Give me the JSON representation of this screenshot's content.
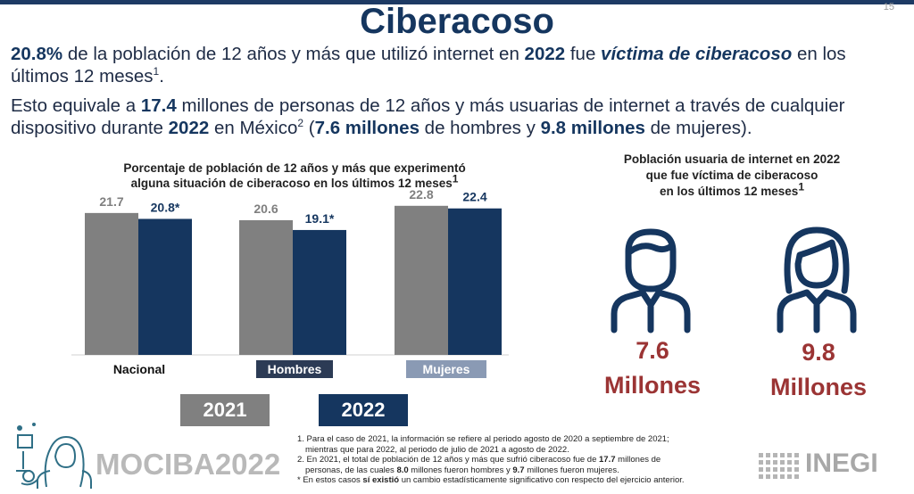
{
  "header": {
    "title": "Ciberacoso",
    "page_number": "15"
  },
  "paragraph1": {
    "s1": "20.8%",
    "s2": " de la población de 12 años y más que utilizó internet en ",
    "s3": "2022",
    "s4": " fue ",
    "s5": "víctima de ciberacoso",
    "s6": " en los últimos 12 meses",
    "s7": "1",
    "s8": "."
  },
  "paragraph2": {
    "s1": "Esto equivale a ",
    "s2": "17.4",
    "s3": " millones de personas de 12 años y más usuarias de internet a través de cualquier dispositivo durante ",
    "s4": "2022",
    "s5": " en México",
    "s6": "2",
    "s7": " (",
    "s8": "7.6 millones",
    "s9": " de hombres y ",
    "s10": "9.8 millones",
    "s11": " de mujeres)."
  },
  "chart_data": {
    "type": "bar",
    "title_line1": "Porcentaje de población de 12 años y más que experimentó",
    "title_line2": "alguna situación de ciberacoso en los últimos 12 meses",
    "title_sup": "1",
    "categories": [
      "Nacional",
      "Hombres",
      "Mujeres"
    ],
    "series": [
      {
        "name": "2021",
        "values": [
          21.7,
          20.6,
          22.8
        ],
        "labels": [
          "21.7",
          "20.6",
          "22.8"
        ],
        "color": "#808080",
        "label_color": "#7f7f7f"
      },
      {
        "name": "2022",
        "values": [
          20.8,
          19.1,
          22.4
        ],
        "labels": [
          "20.8*",
          "19.1*",
          "22.4"
        ],
        "color": "#15365f",
        "label_color": "#15365f"
      }
    ],
    "ylim": [
      0,
      24
    ],
    "grid": false,
    "legend": "bottom"
  },
  "right_panel": {
    "title_line1": "Población usuaria de internet en 2022",
    "title_line2": "que fue víctima de ciberacoso",
    "title_line3": "en los últimos 12 meses",
    "title_sup": "1",
    "men_value": "7.6",
    "men_unit": "Millones",
    "women_value": "9.8",
    "women_unit": "Millones",
    "icon_color": "#15365f",
    "value_color": "#9b3434"
  },
  "footnotes": {
    "n1a": "1. Para el caso de 2021, la información se refiere al periodo agosto de 2020 a septiembre de 2021;",
    "n1b": "mientras que para 2022, al periodo de julio de 2021 a agosto de 2022.",
    "n2a": "2. En 2021, el total de población de 12 años y más que sufrió ciberacoso fue de ",
    "n2b": "17.7",
    "n2c": " millones de",
    "n2d": "personas, de las cuales ",
    "n2e": "8.0",
    "n2f": " millones fueron hombres y ",
    "n2g": "9.7",
    "n2h": " millones fueron mujeres.",
    "n3a": "* En estos casos ",
    "n3b": "sí existió",
    "n3c": " un cambio estadísticamente significativo con respecto del ejercicio anterior."
  },
  "logos": {
    "mociba": "MOCIBA2022",
    "inegi": "INEGI"
  }
}
